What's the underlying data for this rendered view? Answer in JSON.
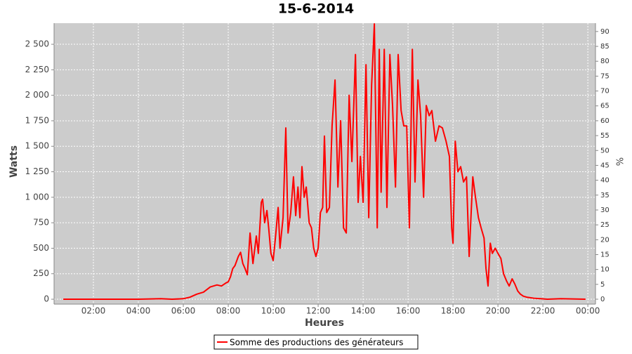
{
  "chart_data": {
    "type": "line",
    "title": "15-6-2014",
    "xlabel": "Heures",
    "ylabel": "Watts",
    "y2label": "%",
    "x": [
      0.66,
      2,
      4,
      5,
      5.5,
      6,
      6.3,
      6.6,
      6.9,
      7.2,
      7.5,
      7.7,
      7.9,
      8.0,
      8.1,
      8.2,
      8.3,
      8.45,
      8.55,
      8.65,
      8.75,
      8.85,
      8.97,
      9.1,
      9.25,
      9.34,
      9.47,
      9.53,
      9.62,
      9.72,
      9.8,
      9.9,
      10.0,
      10.1,
      10.22,
      10.3,
      10.44,
      10.56,
      10.66,
      10.78,
      10.9,
      11.0,
      11.1,
      11.19,
      11.28,
      11.38,
      11.47,
      11.6,
      11.7,
      11.8,
      11.9,
      12.0,
      12.1,
      12.2,
      12.28,
      12.38,
      12.5,
      12.62,
      12.75,
      12.88,
      13.0,
      13.13,
      13.25,
      13.38,
      13.5,
      13.66,
      13.78,
      13.88,
      14.0,
      14.13,
      14.25,
      14.38,
      14.5,
      14.63,
      14.72,
      14.8,
      14.94,
      15.06,
      15.19,
      15.31,
      15.44,
      15.56,
      15.69,
      15.81,
      15.94,
      16.06,
      16.19,
      16.31,
      16.44,
      16.56,
      16.69,
      16.81,
      16.94,
      17.06,
      17.22,
      17.38,
      17.53,
      17.69,
      17.84,
      17.94,
      18.0,
      18.1,
      18.22,
      18.34,
      18.47,
      18.6,
      18.72,
      18.88,
      19.0,
      19.13,
      19.25,
      19.38,
      19.47,
      19.56,
      19.66,
      19.75,
      19.88,
      20.0,
      20.13,
      20.25,
      20.38,
      20.5,
      20.63,
      20.75,
      20.88,
      21.0,
      21.13,
      21.28,
      21.6,
      21.9,
      22.2,
      22.8,
      23.9
    ],
    "series": [
      {
        "name": "Somme des productions des  générateurs",
        "color": "#ff0000",
        "values": [
          0,
          0,
          0,
          5,
          0,
          5,
          20,
          50,
          70,
          120,
          140,
          130,
          160,
          170,
          220,
          300,
          330,
          420,
          460,
          350,
          300,
          240,
          650,
          350,
          620,
          450,
          950,
          980,
          750,
          870,
          700,
          450,
          380,
          600,
          900,
          500,
          800,
          1680,
          650,
          850,
          1200,
          820,
          1100,
          800,
          1300,
          1000,
          1100,
          750,
          700,
          500,
          420,
          500,
          850,
          900,
          1600,
          850,
          900,
          1700,
          2150,
          1100,
          1750,
          700,
          650,
          2000,
          1350,
          2400,
          950,
          1400,
          950,
          2300,
          800,
          2100,
          2700,
          700,
          2450,
          1050,
          2450,
          900,
          2400,
          1900,
          1100,
          2400,
          1850,
          1700,
          1700,
          700,
          2450,
          1150,
          2150,
          1800,
          1000,
          1900,
          1800,
          1850,
          1550,
          1700,
          1680,
          1550,
          1400,
          700,
          550,
          1550,
          1250,
          1300,
          1150,
          1200,
          420,
          1200,
          1000,
          800,
          700,
          600,
          300,
          130,
          550,
          450,
          500,
          450,
          400,
          250,
          180,
          130,
          200,
          150,
          80,
          50,
          30,
          20,
          10,
          5,
          0,
          5,
          0
        ]
      }
    ],
    "xlim": [
      0.25,
      24.34
    ],
    "xticks": [
      {
        "value": 2,
        "label": "02:00"
      },
      {
        "value": 4,
        "label": "04:00"
      },
      {
        "value": 6,
        "label": "06:00"
      },
      {
        "value": 8,
        "label": "08:00"
      },
      {
        "value": 10,
        "label": "10:00"
      },
      {
        "value": 12,
        "label": "12:00"
      },
      {
        "value": 14,
        "label": "14:00"
      },
      {
        "value": 16,
        "label": "16:00"
      },
      {
        "value": 18,
        "label": "18:00"
      },
      {
        "value": 20,
        "label": "20:00"
      },
      {
        "value": 22,
        "label": "22:00"
      },
      {
        "value": 24,
        "label": "00:00"
      }
    ],
    "ylim": [
      -48,
      2707
    ],
    "yticks": [
      0,
      250,
      500,
      750,
      {
        "value": 1000,
        "label": "1 000"
      },
      {
        "value": 1250,
        "label": "1 250"
      },
      {
        "value": 1500,
        "label": "1 500"
      },
      {
        "value": 1750,
        "label": "1 750"
      },
      {
        "value": 2000,
        "label": "2 000"
      },
      {
        "value": 2250,
        "label": "2 250"
      },
      {
        "value": 2500,
        "label": "2 500"
      }
    ],
    "y2lim": [
      -1.65,
      92.8
    ],
    "y2ticks": [
      0,
      5,
      10,
      15,
      20,
      25,
      30,
      35,
      40,
      45,
      50,
      55,
      60,
      65,
      70,
      75,
      80,
      85,
      90
    ],
    "grid": true,
    "legend": "bottom"
  }
}
